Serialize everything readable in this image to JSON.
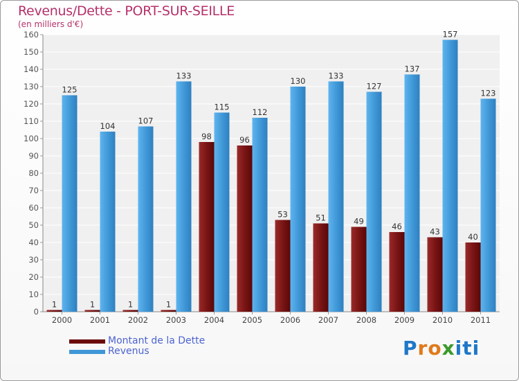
{
  "title": "Revenus/Dette - PORT-SUR-SEILLE",
  "subtitle": "(en milliers d'€)",
  "colors": {
    "title": "#b5306a",
    "debt": "#7a1515",
    "revenue": "#3f97d6",
    "legend_text": "#4c63d2",
    "label_text": "#333333"
  },
  "legend": {
    "items": [
      {
        "label": "Montant de la Dette",
        "color": "#6b0d0d"
      },
      {
        "label": "Revenus",
        "color": "#3f97d6"
      }
    ]
  },
  "logo": {
    "text": "Proxiti",
    "letters": [
      "P",
      "r",
      "o",
      "x",
      "i",
      "t",
      "i"
    ],
    "colors": [
      "#1f78c8",
      "#e07a1c",
      "#e07a1c",
      "#3a9a2a",
      "#1f78c8",
      "#1f78c8",
      "#1f78c8"
    ]
  },
  "chart_data": {
    "type": "bar",
    "categories": [
      "2000",
      "2001",
      "2002",
      "2003",
      "2004",
      "2005",
      "2006",
      "2007",
      "2008",
      "2009",
      "2010",
      "2011"
    ],
    "series": [
      {
        "name": "Montant de la Dette",
        "values": [
          1,
          1,
          1,
          1,
          98,
          96,
          53,
          51,
          49,
          46,
          43,
          40
        ]
      },
      {
        "name": "Revenus",
        "values": [
          125,
          104,
          107,
          133,
          115,
          112,
          130,
          133,
          127,
          137,
          157,
          123
        ]
      }
    ],
    "ylim": [
      0,
      160
    ],
    "yticks": [
      0,
      10,
      20,
      30,
      40,
      50,
      60,
      70,
      80,
      90,
      100,
      110,
      120,
      130,
      140,
      150,
      160
    ],
    "grid": true,
    "legend_position": "bottom-left"
  }
}
